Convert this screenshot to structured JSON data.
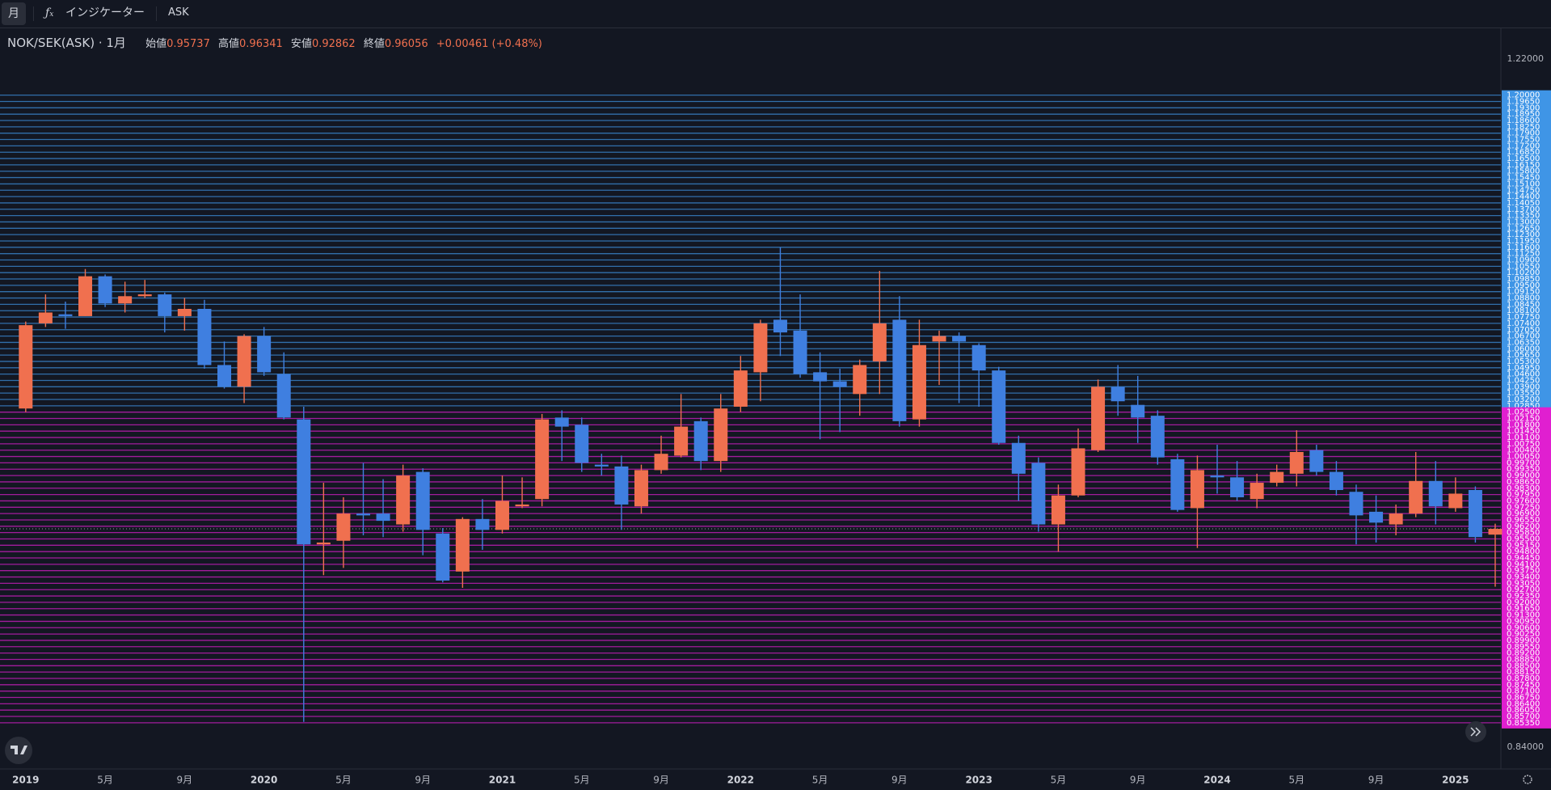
{
  "toolbar": {
    "interval": "月",
    "indicators": "インジケーター",
    "price_side": "ASK"
  },
  "chart_data": {
    "type": "candlestick",
    "title": "NOK/SEK(ASK) · 1月",
    "ohlc_labels": [
      "始値",
      "高値",
      "安値",
      "終値"
    ],
    "change_label": "+0.00461 (+0.48%)",
    "categories": [
      "2019",
      null,
      null,
      null,
      "5月",
      null,
      null,
      null,
      "9月",
      null,
      null,
      null,
      "2020",
      null,
      null,
      null,
      "5月",
      null,
      null,
      null,
      "9月",
      null,
      null,
      null,
      "2021",
      null,
      null,
      null,
      "5月",
      null,
      null,
      null,
      "9月",
      null,
      null,
      null,
      "2022",
      null,
      null,
      null,
      "5月",
      null,
      null,
      null,
      "9月",
      null,
      null,
      null,
      "2023",
      null,
      null,
      null,
      "5月",
      null,
      null,
      null,
      "9月",
      null,
      null,
      null,
      "2024",
      null,
      null,
      null,
      "5月",
      null,
      null,
      null,
      "9月",
      null,
      null,
      null,
      "2025",
      null,
      null
    ],
    "open": [
      1.027,
      1.074,
      1.079,
      1.078,
      1.1,
      1.085,
      1.089,
      1.09,
      1.078,
      1.082,
      1.051,
      1.039,
      1.067,
      1.046,
      1.021,
      0.952,
      0.954,
      0.969,
      0.969,
      0.963,
      0.992,
      0.958,
      0.937,
      0.966,
      0.96,
      0.973,
      0.977,
      1.022,
      1.018,
      0.996,
      0.995,
      0.973,
      0.993,
      1.001,
      1.02,
      0.998,
      1.028,
      1.047,
      1.076,
      1.07,
      1.047,
      1.042,
      1.035,
      1.053,
      1.076,
      1.021,
      1.064,
      1.067,
      1.062,
      1.048,
      1.008,
      0.997,
      0.963,
      0.979,
      1.004,
      1.039,
      1.029,
      1.023,
      0.999,
      0.972,
      0.99,
      0.989,
      0.977,
      0.986,
      0.991,
      1.004,
      0.992,
      0.981,
      0.97,
      0.963,
      0.969,
      0.987,
      0.972,
      0.982,
      0.95737
    ],
    "high": [
      1.075,
      1.09,
      1.086,
      1.104,
      1.101,
      1.097,
      1.098,
      1.091,
      1.088,
      1.087,
      1.064,
      1.068,
      1.072,
      1.058,
      1.028,
      0.986,
      0.978,
      0.997,
      0.988,
      0.996,
      0.994,
      0.961,
      0.967,
      0.977,
      0.99,
      0.989,
      1.024,
      1.026,
      1.022,
      1.002,
      1.001,
      0.996,
      1.012,
      1.035,
      1.022,
      1.035,
      1.056,
      1.076,
      1.116,
      1.09,
      1.058,
      1.049,
      1.054,
      1.103,
      1.089,
      1.076,
      1.07,
      1.069,
      1.063,
      1.05,
      1.012,
      1.0,
      0.985,
      1.016,
      1.043,
      1.051,
      1.045,
      1.026,
      1.002,
      1.001,
      1.007,
      0.998,
      0.991,
      0.996,
      1.015,
      1.007,
      0.998,
      0.985,
      0.979,
      0.974,
      1.003,
      0.998,
      0.989,
      0.984,
      0.96341
    ],
    "low": [
      1.025,
      1.072,
      1.071,
      1.078,
      1.083,
      1.08,
      1.088,
      1.069,
      1.07,
      1.049,
      1.038,
      1.03,
      1.045,
      1.021,
      0.854,
      0.935,
      0.939,
      0.957,
      0.956,
      0.959,
      0.946,
      0.931,
      0.928,
      0.949,
      0.958,
      0.972,
      0.973,
      0.998,
      0.992,
      0.99,
      0.96,
      0.969,
      0.991,
      1.0,
      0.993,
      0.992,
      1.025,
      1.031,
      1.056,
      1.044,
      1.01,
      1.014,
      1.023,
      1.035,
      1.017,
      1.017,
      1.04,
      1.03,
      1.028,
      1.007,
      0.976,
      0.959,
      0.948,
      0.978,
      1.003,
      1.023,
      1.008,
      0.996,
      0.97,
      0.95,
      0.98,
      0.976,
      0.972,
      0.984,
      0.984,
      0.99,
      0.979,
      0.952,
      0.953,
      0.957,
      0.967,
      0.963,
      0.97,
      0.953,
      0.92862
    ],
    "close": [
      1.073,
      1.08,
      1.078,
      1.1,
      1.085,
      1.089,
      1.09,
      1.078,
      1.082,
      1.051,
      1.039,
      1.067,
      1.047,
      1.022,
      0.952,
      0.953,
      0.969,
      0.968,
      0.965,
      0.99,
      0.96,
      0.932,
      0.966,
      0.96,
      0.976,
      0.974,
      1.021,
      1.017,
      0.997,
      0.995,
      0.974,
      0.993,
      1.002,
      1.017,
      0.998,
      1.027,
      1.048,
      1.074,
      1.069,
      1.046,
      1.042,
      1.039,
      1.051,
      1.074,
      1.02,
      1.062,
      1.067,
      1.064,
      1.048,
      1.008,
      0.991,
      0.963,
      0.979,
      1.005,
      1.039,
      1.031,
      1.022,
      1.0,
      0.971,
      0.993,
      0.989,
      0.978,
      0.986,
      0.992,
      1.003,
      0.992,
      0.982,
      0.968,
      0.964,
      0.969,
      0.987,
      0.973,
      0.98,
      0.956,
      0.96056
    ],
    "up_color": "#f0704f",
    "down_color": "#3f7fe0",
    "ylim": [
      0.828,
      1.236
    ],
    "yticks": [
      {
        "value": 1.22,
        "label": "1.22000"
      },
      {
        "value": 0.84,
        "label": "0.84000"
      }
    ],
    "upper_color": "#3f95e6",
    "lower_color": "#e01fd0",
    "levels_upper": [
      {
        "value": 1.2,
        "label": "1.20000"
      },
      {
        "value": 1.1965,
        "label": "1.19650"
      },
      {
        "value": 1.193,
        "label": "1.19300"
      },
      {
        "value": 1.1895,
        "label": "1.18950"
      },
      {
        "value": 1.186,
        "label": "1.18600"
      },
      {
        "value": 1.1825,
        "label": "1.18250"
      },
      {
        "value": 1.179,
        "label": "1.17900"
      },
      {
        "value": 1.1755,
        "label": "1.17550"
      },
      {
        "value": 1.172,
        "label": "1.17200"
      },
      {
        "value": 1.1685,
        "label": "1.16850"
      },
      {
        "value": 1.165,
        "label": "1.16500"
      },
      {
        "value": 1.1615,
        "label": "1.16150"
      },
      {
        "value": 1.158,
        "label": "1.15800"
      },
      {
        "value": 1.1545,
        "label": "1.15450"
      },
      {
        "value": 1.151,
        "label": "1.15100"
      },
      {
        "value": 1.1475,
        "label": "1.14750"
      },
      {
        "value": 1.144,
        "label": "1.14400"
      },
      {
        "value": 1.1405,
        "label": "1.14050"
      },
      {
        "value": 1.137,
        "label": "1.13700"
      },
      {
        "value": 1.1335,
        "label": "1.13350"
      },
      {
        "value": 1.13,
        "label": "1.13000"
      },
      {
        "value": 1.1265,
        "label": "1.12650"
      },
      {
        "value": 1.123,
        "label": "1.12300"
      },
      {
        "value": 1.1195,
        "label": "1.11950"
      },
      {
        "value": 1.116,
        "label": "1.11600"
      },
      {
        "value": 1.1125,
        "label": "1.11250"
      },
      {
        "value": 1.109,
        "label": "1.10900"
      },
      {
        "value": 1.1055,
        "label": "1.10550"
      },
      {
        "value": 1.102,
        "label": "1.10200"
      },
      {
        "value": 1.0985,
        "label": "1.09850"
      },
      {
        "value": 1.095,
        "label": "1.09500"
      },
      {
        "value": 1.0915,
        "label": "1.09150"
      },
      {
        "value": 1.088,
        "label": "1.08800"
      },
      {
        "value": 1.0845,
        "label": "1.08450"
      },
      {
        "value": 1.081,
        "label": "1.08100"
      },
      {
        "value": 1.0775,
        "label": "1.07750"
      },
      {
        "value": 1.074,
        "label": "1.07400"
      },
      {
        "value": 1.0705,
        "label": "1.07050"
      },
      {
        "value": 1.067,
        "label": "1.06700"
      },
      {
        "value": 1.0635,
        "label": "1.06350"
      },
      {
        "value": 1.06,
        "label": "1.06000"
      },
      {
        "value": 1.0565,
        "label": "1.05650"
      },
      {
        "value": 1.053,
        "label": "1.05300"
      },
      {
        "value": 1.0495,
        "label": "1.04950"
      },
      {
        "value": 1.046,
        "label": "1.04600"
      },
      {
        "value": 1.0425,
        "label": "1.04250"
      },
      {
        "value": 1.039,
        "label": "1.03900"
      },
      {
        "value": 1.0355,
        "label": "1.03550"
      },
      {
        "value": 1.032,
        "label": "1.03200"
      },
      {
        "value": 1.0285,
        "label": "1.02850"
      }
    ],
    "levels_lower": [
      {
        "value": 1.025,
        "label": "1.02500"
      },
      {
        "value": 1.0215,
        "label": "1.02150"
      },
      {
        "value": 1.018,
        "label": "1.01800"
      },
      {
        "value": 1.0145,
        "label": "1.01450"
      },
      {
        "value": 1.011,
        "label": "1.01100"
      },
      {
        "value": 1.0075,
        "label": "1.00750"
      },
      {
        "value": 1.004,
        "label": "1.00400"
      },
      {
        "value": 1.0005,
        "label": "1.00050"
      },
      {
        "value": 0.997,
        "label": "0.99700"
      },
      {
        "value": 0.9935,
        "label": "0.99350"
      },
      {
        "value": 0.99,
        "label": "0.99000"
      },
      {
        "value": 0.9865,
        "label": "0.98650"
      },
      {
        "value": 0.983,
        "label": "0.98300"
      },
      {
        "value": 0.9795,
        "label": "0.97950"
      },
      {
        "value": 0.976,
        "label": "0.97600"
      },
      {
        "value": 0.9725,
        "label": "0.97250"
      },
      {
        "value": 0.969,
        "label": "0.96900"
      },
      {
        "value": 0.9655,
        "label": "0.96550"
      },
      {
        "value": 0.962,
        "label": "0.96200"
      },
      {
        "value": 0.9585,
        "label": "0.95850"
      },
      {
        "value": 0.955,
        "label": "0.95500"
      },
      {
        "value": 0.9515,
        "label": "0.95150"
      },
      {
        "value": 0.948,
        "label": "0.94800"
      },
      {
        "value": 0.9445,
        "label": "0.94450"
      },
      {
        "value": 0.941,
        "label": "0.94100"
      },
      {
        "value": 0.9375,
        "label": "0.93750"
      },
      {
        "value": 0.934,
        "label": "0.93400"
      },
      {
        "value": 0.9305,
        "label": "0.93050"
      },
      {
        "value": 0.927,
        "label": "0.92700"
      },
      {
        "value": 0.9235,
        "label": "0.92350"
      },
      {
        "value": 0.92,
        "label": "0.92000"
      },
      {
        "value": 0.9165,
        "label": "0.91650"
      },
      {
        "value": 0.913,
        "label": "0.91300"
      },
      {
        "value": 0.9095,
        "label": "0.90950"
      },
      {
        "value": 0.906,
        "label": "0.90600"
      },
      {
        "value": 0.9025,
        "label": "0.90250"
      },
      {
        "value": 0.899,
        "label": "0.89900"
      },
      {
        "value": 0.8955,
        "label": "0.89550"
      },
      {
        "value": 0.892,
        "label": "0.89200"
      },
      {
        "value": 0.8885,
        "label": "0.88850"
      },
      {
        "value": 0.885,
        "label": "0.88500"
      },
      {
        "value": 0.8815,
        "label": "0.88150"
      },
      {
        "value": 0.878,
        "label": "0.87800"
      },
      {
        "value": 0.8745,
        "label": "0.87450"
      },
      {
        "value": 0.871,
        "label": "0.87100"
      },
      {
        "value": 0.8675,
        "label": "0.86750"
      },
      {
        "value": 0.864,
        "label": "0.86400"
      },
      {
        "value": 0.8605,
        "label": "0.86050"
      },
      {
        "value": 0.857,
        "label": "0.85700"
      },
      {
        "value": 0.8535,
        "label": "0.85350"
      }
    ]
  }
}
